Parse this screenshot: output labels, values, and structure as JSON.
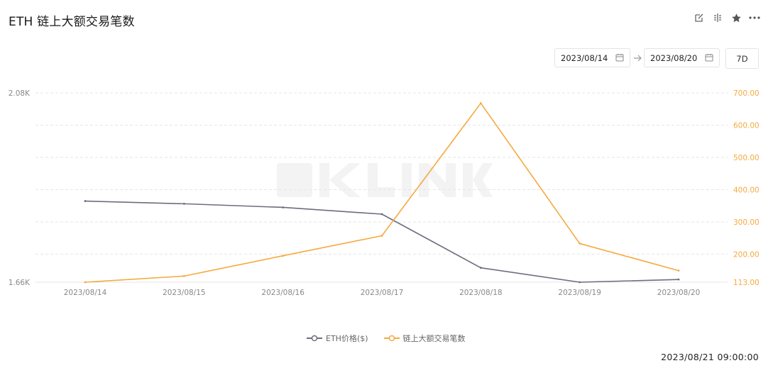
{
  "header": {
    "title": "ETH 链上大额交易笔数",
    "tools": [
      "edit-icon",
      "compare-icon",
      "star-icon",
      "more-icon"
    ]
  },
  "controls": {
    "start_date": "2023/08/14",
    "end_date": "2023/08/20",
    "range_button": "7D"
  },
  "legend": {
    "series1": "ETH价格($)",
    "series2": "链上大额交易笔数"
  },
  "footer": {
    "timestamp": "2023/08/21 09:00:00"
  },
  "colors": {
    "eth_price": "#6b6e7e",
    "large_tx": "#f5a93f",
    "grid": "#e6e6e6",
    "left_axis_text": "#888888",
    "right_axis_text": "#f5a93f"
  },
  "chart_data": {
    "type": "line",
    "categories": [
      "2023/08/14",
      "2023/08/15",
      "2023/08/16",
      "2023/08/17",
      "2023/08/18",
      "2023/08/19",
      "2023/08/20"
    ],
    "series": [
      {
        "name": "ETH价格($)",
        "axis": "left",
        "values": [
          1840,
          1834,
          1826,
          1811,
          1692,
          1660,
          1666
        ]
      },
      {
        "name": "链上大额交易笔数",
        "axis": "right",
        "values": [
          113,
          132,
          195,
          257,
          668,
          233,
          149
        ]
      }
    ],
    "left_axis": {
      "min": 1660,
      "max": 2080,
      "tick_labels": [
        "2.08K",
        "1.66K"
      ]
    },
    "right_axis": {
      "min": 113,
      "max": 700,
      "tick_values": [
        113,
        200,
        300,
        400,
        500,
        600,
        700
      ],
      "tick_labels": [
        "113.00",
        "200.00",
        "300.00",
        "400.00",
        "500.00",
        "600.00",
        "700.00"
      ]
    },
    "grid": true,
    "legend_position": "bottom"
  }
}
